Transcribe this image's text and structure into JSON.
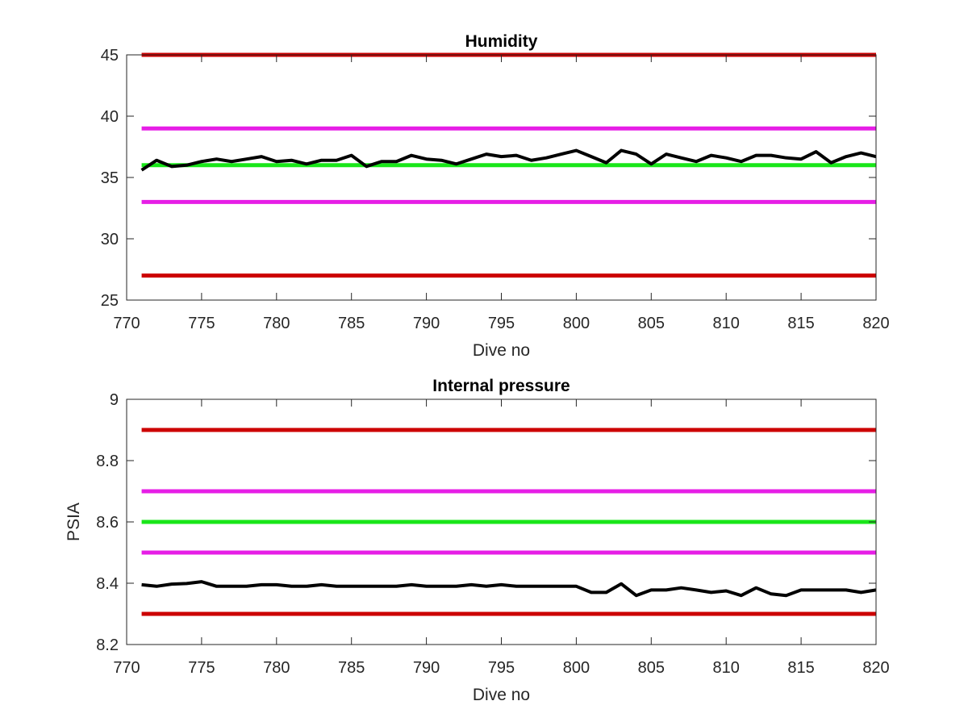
{
  "chart_data": [
    {
      "type": "line",
      "title": "Humidity",
      "xlabel": "Dive no",
      "ylabel": "",
      "xlim": [
        770,
        820
      ],
      "ylim": [
        25,
        45
      ],
      "xticks": [
        "770",
        "775",
        "780",
        "785",
        "790",
        "795",
        "800",
        "805",
        "810",
        "815",
        "820"
      ],
      "yticks": [
        "25",
        "30",
        "35",
        "40",
        "45"
      ],
      "grid": false,
      "reference_lines": [
        {
          "y": 45,
          "color": "#cc0000",
          "x_range": [
            771,
            820
          ]
        },
        {
          "y": 39,
          "color": "#e61ee6",
          "x_range": [
            771,
            820
          ]
        },
        {
          "y": 36,
          "color": "#19e619",
          "x_range": [
            771,
            820
          ]
        },
        {
          "y": 33,
          "color": "#e61ee6",
          "x_range": [
            771,
            820
          ]
        },
        {
          "y": 27,
          "color": "#cc0000",
          "x_range": [
            771,
            820
          ]
        }
      ],
      "series": [
        {
          "color": "#000000",
          "x": [
            771,
            772,
            773,
            774,
            775,
            776,
            777,
            778,
            779,
            780,
            781,
            782,
            783,
            784,
            785,
            786,
            787,
            788,
            789,
            790,
            791,
            792,
            793,
            794,
            795,
            796,
            797,
            798,
            799,
            800,
            801,
            802,
            803,
            804,
            805,
            806,
            807,
            808,
            809,
            810,
            811,
            812,
            813,
            814,
            815,
            816,
            817,
            818,
            819,
            820
          ],
          "values": [
            35.6,
            36.4,
            35.9,
            36.0,
            36.3,
            36.5,
            36.3,
            36.5,
            36.7,
            36.3,
            36.4,
            36.1,
            36.4,
            36.4,
            36.8,
            35.9,
            36.3,
            36.3,
            36.8,
            36.5,
            36.4,
            36.1,
            36.5,
            36.9,
            36.7,
            36.8,
            36.4,
            36.6,
            36.9,
            37.2,
            36.7,
            36.2,
            37.2,
            36.9,
            36.1,
            36.9,
            36.6,
            36.3,
            36.8,
            36.6,
            36.3,
            36.8,
            36.8,
            36.6,
            36.5,
            37.1,
            36.2,
            36.7,
            37.0,
            36.7
          ]
        }
      ]
    },
    {
      "type": "line",
      "title": "Internal pressure",
      "xlabel": "Dive no",
      "ylabel": "PSIA",
      "xlim": [
        770,
        820
      ],
      "ylim": [
        8.2,
        9
      ],
      "xticks": [
        "770",
        "775",
        "780",
        "785",
        "790",
        "795",
        "800",
        "805",
        "810",
        "815",
        "820"
      ],
      "yticks": [
        "8.2",
        "8.4",
        "8.6",
        "8.8",
        "9"
      ],
      "grid": false,
      "reference_lines": [
        {
          "y": 8.9,
          "color": "#cc0000",
          "x_range": [
            771,
            820
          ]
        },
        {
          "y": 8.7,
          "color": "#e61ee6",
          "x_range": [
            771,
            820
          ]
        },
        {
          "y": 8.6,
          "color": "#19e619",
          "x_range": [
            771,
            820
          ]
        },
        {
          "y": 8.5,
          "color": "#e61ee6",
          "x_range": [
            771,
            820
          ]
        },
        {
          "y": 8.3,
          "color": "#cc0000",
          "x_range": [
            771,
            820
          ]
        }
      ],
      "series": [
        {
          "color": "#000000",
          "x": [
            771,
            772,
            773,
            774,
            775,
            776,
            777,
            778,
            779,
            780,
            781,
            782,
            783,
            784,
            785,
            786,
            787,
            788,
            789,
            790,
            791,
            792,
            793,
            794,
            795,
            796,
            797,
            798,
            799,
            800,
            801,
            802,
            803,
            804,
            805,
            806,
            807,
            808,
            809,
            810,
            811,
            812,
            813,
            814,
            815,
            816,
            817,
            818,
            819,
            820
          ],
          "values": [
            8.395,
            8.39,
            8.397,
            8.399,
            8.405,
            8.39,
            8.39,
            8.39,
            8.395,
            8.395,
            8.39,
            8.39,
            8.395,
            8.39,
            8.39,
            8.39,
            8.39,
            8.39,
            8.395,
            8.39,
            8.39,
            8.39,
            8.395,
            8.39,
            8.395,
            8.39,
            8.39,
            8.39,
            8.39,
            8.39,
            8.37,
            8.37,
            8.398,
            8.36,
            8.378,
            8.378,
            8.385,
            8.378,
            8.37,
            8.375,
            8.36,
            8.385,
            8.365,
            8.36,
            8.378,
            8.378,
            8.378,
            8.378,
            8.37,
            8.378
          ]
        }
      ]
    }
  ]
}
